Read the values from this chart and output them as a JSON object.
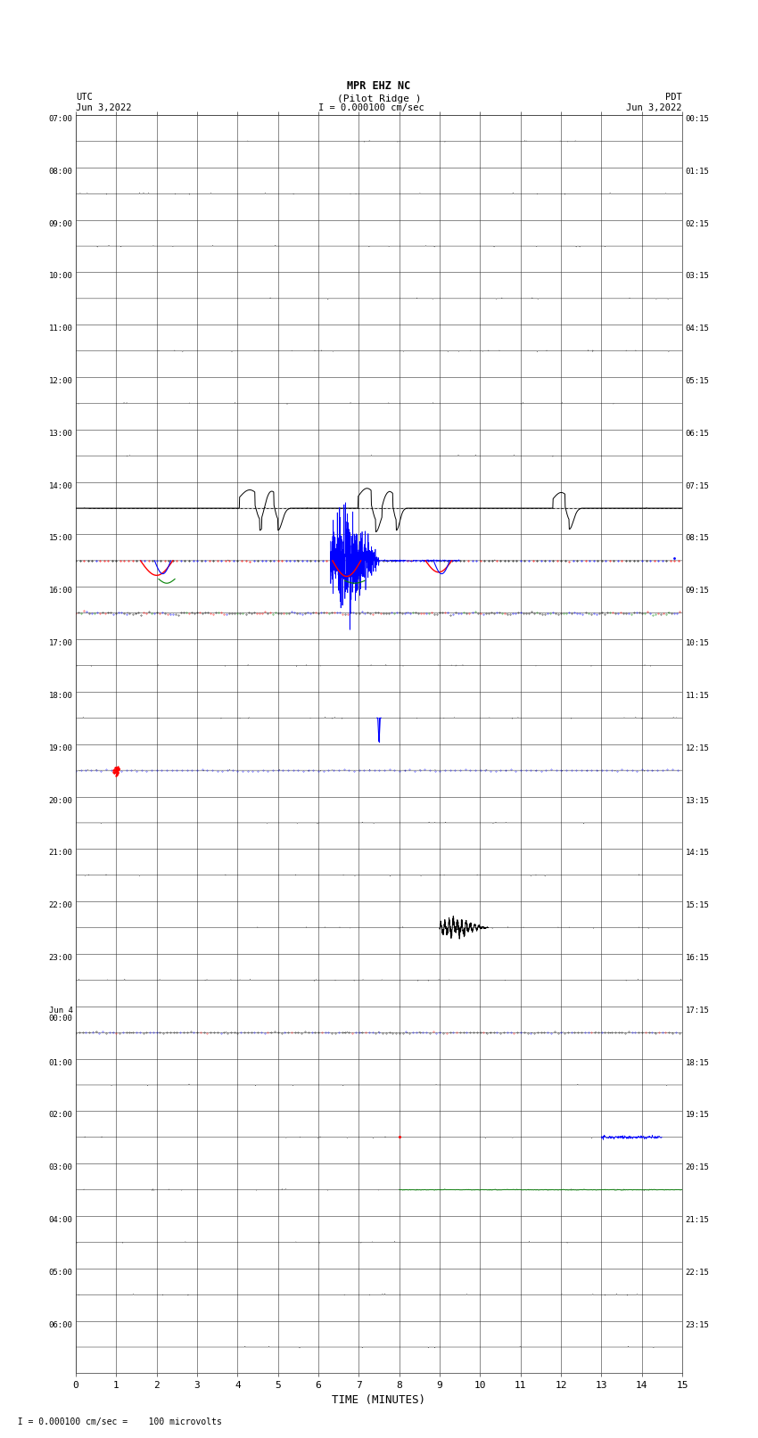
{
  "title_line1": "MPR EHZ NC",
  "title_line2": "(Pilot Ridge )",
  "title_scale": "I = 0.000100 cm/sec",
  "left_header": "UTC\nJun 3,2022",
  "right_header": "PDT\nJun 3,2022",
  "xlabel": "TIME (MINUTES)",
  "footer": "  I = 0.000100 cm/sec =    100 microvolts",
  "bg_color": "#ffffff",
  "grid_color": "#888888",
  "n_rows": 24,
  "x_min": 0,
  "x_max": 15,
  "x_ticks": [
    0,
    1,
    2,
    3,
    4,
    5,
    6,
    7,
    8,
    9,
    10,
    11,
    12,
    13,
    14,
    15
  ],
  "left_labels": [
    "07:00",
    "08:00",
    "09:00",
    "10:00",
    "11:00",
    "12:00",
    "13:00",
    "14:00",
    "15:00",
    "16:00",
    "17:00",
    "18:00",
    "19:00",
    "20:00",
    "21:00",
    "22:00",
    "23:00",
    "Jun 4\n00:00",
    "01:00",
    "02:00",
    "03:00",
    "04:00",
    "05:00",
    "06:00"
  ],
  "right_labels": [
    "00:15",
    "01:15",
    "02:15",
    "03:15",
    "04:15",
    "05:15",
    "06:15",
    "07:15",
    "08:15",
    "09:15",
    "10:15",
    "11:15",
    "12:15",
    "13:15",
    "14:15",
    "15:15",
    "16:15",
    "17:15",
    "18:15",
    "19:15",
    "20:15",
    "21:15",
    "22:15",
    "23:15"
  ]
}
